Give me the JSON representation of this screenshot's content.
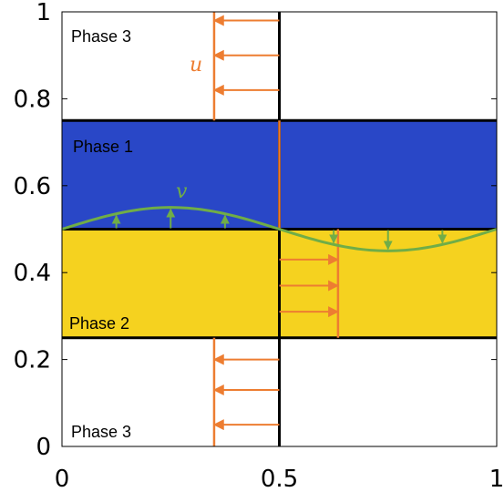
{
  "diagram": {
    "phases": [
      {
        "id": "phase3_top",
        "label": "Phase 3"
      },
      {
        "id": "phase1",
        "label": "Phase 1"
      },
      {
        "id": "phase2",
        "label": "Phase 2"
      },
      {
        "id": "phase3_bottom",
        "label": "Phase 3"
      }
    ],
    "symbols": {
      "u": "u",
      "v": "v"
    },
    "colors": {
      "phase1": "#2947c7",
      "phase2": "#f5d21f",
      "u_arrows": "#ed7d31",
      "v_curve": "#70ad47",
      "interface": "#000000"
    }
  },
  "chart_data": {
    "type": "diagram",
    "xlim": [
      0,
      1
    ],
    "ylim": [
      0,
      1
    ],
    "x_ticks": [
      {
        "value": 0,
        "label": "0"
      },
      {
        "value": 0.5,
        "label": "0.5"
      },
      {
        "value": 1,
        "label": "1"
      }
    ],
    "y_ticks": [
      {
        "value": 0,
        "label": "0"
      },
      {
        "value": 0.2,
        "label": "0.2"
      },
      {
        "value": 0.4,
        "label": "0.4"
      },
      {
        "value": 0.6,
        "label": "0.6"
      },
      {
        "value": 0.8,
        "label": "0.8"
      },
      {
        "value": 1,
        "label": "1"
      }
    ],
    "regions": [
      {
        "name": "phase1",
        "y_range": [
          0.5,
          0.75
        ]
      },
      {
        "name": "phase2",
        "y_range": [
          0.25,
          0.5
        ]
      }
    ],
    "interfaces_y": [
      0.25,
      0.5,
      0.75
    ],
    "vertical_line_x": 0.5,
    "u_profiles": [
      {
        "name": "u-top",
        "line_x": 0.35,
        "y_range": [
          0.75,
          1
        ],
        "arrow_y": [
          0.82,
          0.9,
          0.98
        ],
        "direction": "left"
      },
      {
        "name": "u-middle",
        "line_x": 0.635,
        "y_range": [
          0.25,
          0.5
        ],
        "arrow_y": [
          0.31,
          0.37,
          0.43
        ],
        "direction": "right"
      },
      {
        "name": "u-bottom",
        "line_x": 0.35,
        "y_range": [
          0,
          0.25
        ],
        "arrow_y": [
          0.05,
          0.13,
          0.2
        ],
        "direction": "left"
      }
    ],
    "v_curve": {
      "baseline": 0.5,
      "amplitude": 0.05,
      "x_range": [
        0,
        1
      ],
      "arrows_x": [
        0.125,
        0.25,
        0.375,
        0.625,
        0.75,
        0.875
      ]
    }
  }
}
